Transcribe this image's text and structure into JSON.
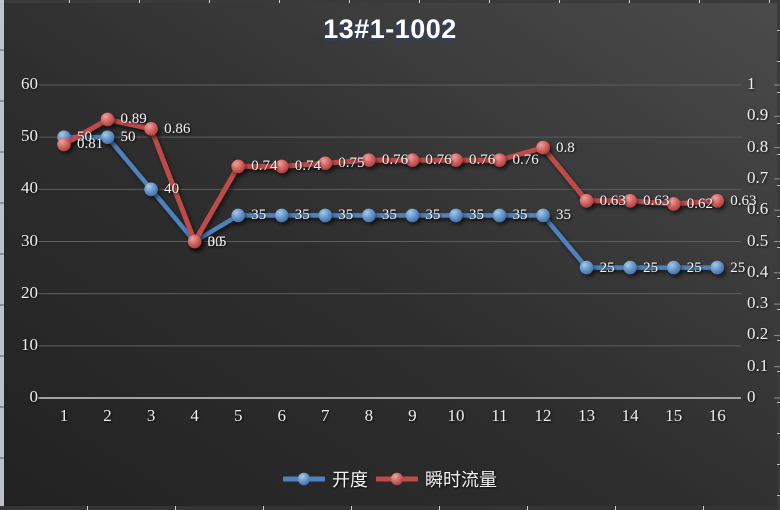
{
  "chart_data": {
    "type": "line",
    "title": "13#1-1002",
    "x": [
      1,
      2,
      3,
      4,
      5,
      6,
      7,
      8,
      9,
      10,
      11,
      12,
      13,
      14,
      15,
      16
    ],
    "x_tick_labels": [
      "1",
      "2",
      "3",
      "4",
      "5",
      "6",
      "7",
      "8",
      "9",
      "10",
      "11",
      "12",
      "13",
      "14",
      "15",
      "16"
    ],
    "series": [
      {
        "name": "开度",
        "axis": "left",
        "color": "#4f81bd",
        "marker_highlight": "#a8c9e8",
        "values": [
          50,
          50,
          40,
          30,
          35,
          35,
          35,
          35,
          35,
          35,
          35,
          35,
          25,
          25,
          25,
          25
        ],
        "labels": [
          "50",
          "50",
          "40",
          "30",
          "35",
          "35",
          "35",
          "35",
          "35",
          "35",
          "35",
          "35",
          "25",
          "25",
          "25",
          "25"
        ]
      },
      {
        "name": "瞬时流量",
        "axis": "right",
        "color": "#be4b48",
        "marker_highlight": "#eda19f",
        "values": [
          0.81,
          0.89,
          0.86,
          0.5,
          0.74,
          0.74,
          0.75,
          0.76,
          0.76,
          0.76,
          0.76,
          0.8,
          0.63,
          0.63,
          0.62,
          0.63
        ],
        "labels": [
          "0.81",
          "0.89",
          "0.86",
          "0.5",
          "0.74",
          "0.74",
          "0.75",
          "0.76",
          "0.76",
          "0.76",
          "0.76",
          "0.8",
          "0.63",
          "0.63",
          "0.62",
          "0.63"
        ]
      }
    ],
    "left_axis": {
      "min": 0,
      "max": 60,
      "ticks": [
        60,
        50,
        40,
        30,
        20,
        10,
        0
      ],
      "tick_labels": [
        "60",
        "50",
        "40",
        "30",
        "20",
        "10",
        "0"
      ]
    },
    "right_axis": {
      "min": 0,
      "max": 1,
      "ticks": [
        1,
        0.9,
        0.8,
        0.7,
        0.6,
        0.5,
        0.4,
        0.3,
        0.2,
        0.1,
        0
      ],
      "tick_labels": [
        "1",
        "0.9",
        "0.8",
        "0.7",
        "0.6",
        "0.5",
        "0.4",
        "0.3",
        "0.2",
        "0.1",
        "0"
      ]
    },
    "grid": {
      "horizontal": true,
      "vertical": false,
      "color": "#5e5e5e",
      "axis_line_color": "#a2a2a2"
    },
    "legend": {
      "position": "bottom",
      "entries": [
        "开度",
        "瞬时流量"
      ]
    },
    "text_color": "#efefef",
    "background": {
      "from": "#222222",
      "to": "#4b4b4b"
    }
  }
}
